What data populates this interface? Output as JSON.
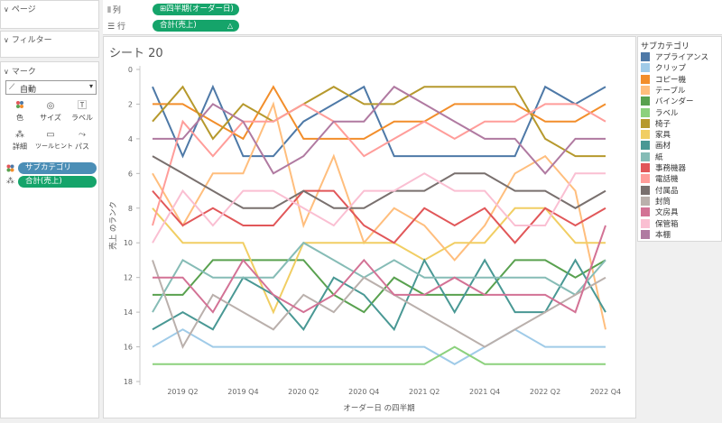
{
  "left_panel": {
    "pages_title": "ページ",
    "filters_title": "フィルター",
    "marks_title": "マーク",
    "mark_type": "自動",
    "mark_buttons": [
      {
        "label": "色",
        "icon": "color-icon"
      },
      {
        "label": "サイズ",
        "icon": "size-icon"
      },
      {
        "label": "ラベル",
        "icon": "label-icon"
      },
      {
        "label": "詳細",
        "icon": "detail-icon"
      },
      {
        "label": "ツールヒント",
        "icon": "tooltip-icon"
      },
      {
        "label": "パス",
        "icon": "path-icon"
      }
    ],
    "mark_pills": [
      {
        "label": "サブカテゴリ",
        "color": "#4b8eb6",
        "icon": "color-dots-icon"
      },
      {
        "label": "合計(売上)",
        "color": "#15a46a",
        "icon": "detail-icon"
      }
    ]
  },
  "shelves": {
    "columns": {
      "label": "列",
      "pill": "四半期(オーダー日)",
      "pill_prefix": "⊞"
    },
    "rows": {
      "label": "行",
      "pill": "合計(売上)",
      "pill_suffix": "△"
    }
  },
  "sheet_title": "シート 20",
  "legend": {
    "title": "サブカテゴリ"
  },
  "chart_data": {
    "type": "line",
    "title": "シート 20",
    "xlabel": "オーダー日 の四半期",
    "ylabel": "売上 のランク",
    "y_reversed": true,
    "ylim": [
      0,
      18
    ],
    "yticks": [
      0,
      2,
      4,
      6,
      8,
      10,
      12,
      14,
      16,
      18
    ],
    "x": [
      "2019 Q1",
      "2019 Q2",
      "2019 Q3",
      "2019 Q4",
      "2020 Q1",
      "2020 Q2",
      "2020 Q3",
      "2020 Q4",
      "2021 Q1",
      "2021 Q2",
      "2021 Q3",
      "2021 Q4",
      "2022 Q1",
      "2022 Q2",
      "2022 Q3",
      "2022 Q4"
    ],
    "xticks": [
      "2019 Q2",
      "2019 Q4",
      "2020 Q2",
      "2020 Q4",
      "2021 Q2",
      "2021 Q4",
      "2022 Q2",
      "2022 Q4"
    ],
    "grid": false,
    "legend_position": "right",
    "series": [
      {
        "name": "アプライアンス",
        "color": "#4e79a7",
        "values": [
          1,
          5,
          1,
          5,
          5,
          3,
          2,
          1,
          5,
          5,
          5,
          5,
          5,
          1,
          2,
          1
        ]
      },
      {
        "name": "クリップ",
        "color": "#a0cbe8",
        "values": [
          16,
          15,
          16,
          16,
          16,
          16,
          16,
          16,
          16,
          16,
          17,
          16,
          15,
          16,
          16,
          16
        ]
      },
      {
        "name": "コピー機",
        "color": "#f28e2b",
        "values": [
          2,
          2,
          3,
          4,
          1,
          4,
          4,
          4,
          3,
          3,
          2,
          2,
          2,
          3,
          3,
          2
        ]
      },
      {
        "name": "テーブル",
        "color": "#ffbe7d",
        "values": [
          6,
          9,
          6,
          6,
          2,
          9,
          5,
          10,
          8,
          9,
          11,
          9,
          6,
          5,
          7,
          15
        ]
      },
      {
        "name": "バインダー",
        "color": "#59a14f",
        "values": [
          13,
          13,
          11,
          11,
          11,
          11,
          13,
          14,
          12,
          13,
          13,
          13,
          11,
          11,
          12,
          11
        ]
      },
      {
        "name": "ラベル",
        "color": "#8cd17d",
        "values": [
          17,
          17,
          17,
          17,
          17,
          17,
          17,
          17,
          17,
          17,
          16,
          17,
          17,
          17,
          17,
          17
        ]
      },
      {
        "name": "椅子",
        "color": "#b6992d",
        "values": [
          3,
          1,
          4,
          2,
          3,
          2,
          1,
          2,
          2,
          1,
          1,
          1,
          1,
          4,
          5,
          5
        ]
      },
      {
        "name": "家具",
        "color": "#f1ce63",
        "values": [
          8,
          10,
          10,
          10,
          14,
          10,
          10,
          10,
          10,
          11,
          10,
          10,
          8,
          8,
          10,
          10
        ]
      },
      {
        "name": "画材",
        "color": "#499894",
        "values": [
          15,
          14,
          15,
          12,
          13,
          15,
          12,
          13,
          15,
          11,
          14,
          11,
          14,
          14,
          11,
          14
        ]
      },
      {
        "name": "紙",
        "color": "#86bcb6",
        "values": [
          14,
          11,
          12,
          12,
          12,
          10,
          11,
          12,
          11,
          12,
          12,
          12,
          12,
          12,
          13,
          11
        ]
      },
      {
        "name": "事務機器",
        "color": "#e15759",
        "values": [
          7,
          9,
          8,
          9,
          9,
          7,
          7,
          9,
          10,
          8,
          9,
          8,
          10,
          8,
          9,
          8
        ]
      },
      {
        "name": "電話機",
        "color": "#ff9d9a",
        "values": [
          9,
          3,
          5,
          3,
          3,
          2,
          3,
          5,
          4,
          3,
          4,
          3,
          3,
          2,
          2,
          3
        ]
      },
      {
        "name": "付属品",
        "color": "#79706e",
        "values": [
          5,
          6,
          7,
          8,
          8,
          7,
          8,
          8,
          7,
          7,
          6,
          6,
          7,
          7,
          8,
          7
        ]
      },
      {
        "name": "封筒",
        "color": "#bab0ac",
        "values": [
          11,
          16,
          13,
          14,
          15,
          13,
          14,
          12,
          13,
          14,
          15,
          16,
          15,
          14,
          13,
          12
        ]
      },
      {
        "name": "文房具",
        "color": "#d37295",
        "values": [
          12,
          12,
          14,
          11,
          13,
          14,
          13,
          11,
          13,
          13,
          12,
          13,
          13,
          13,
          14,
          9
        ]
      },
      {
        "name": "保管箱",
        "color": "#fabfd2",
        "values": [
          10,
          7,
          9,
          7,
          7,
          8,
          9,
          7,
          7,
          6,
          7,
          7,
          9,
          9,
          6,
          6
        ]
      },
      {
        "name": "本棚",
        "color": "#b07aa1",
        "values": [
          4,
          4,
          2,
          3,
          6,
          5,
          3,
          3,
          1,
          2,
          3,
          4,
          4,
          6,
          4,
          4
        ]
      }
    ]
  }
}
